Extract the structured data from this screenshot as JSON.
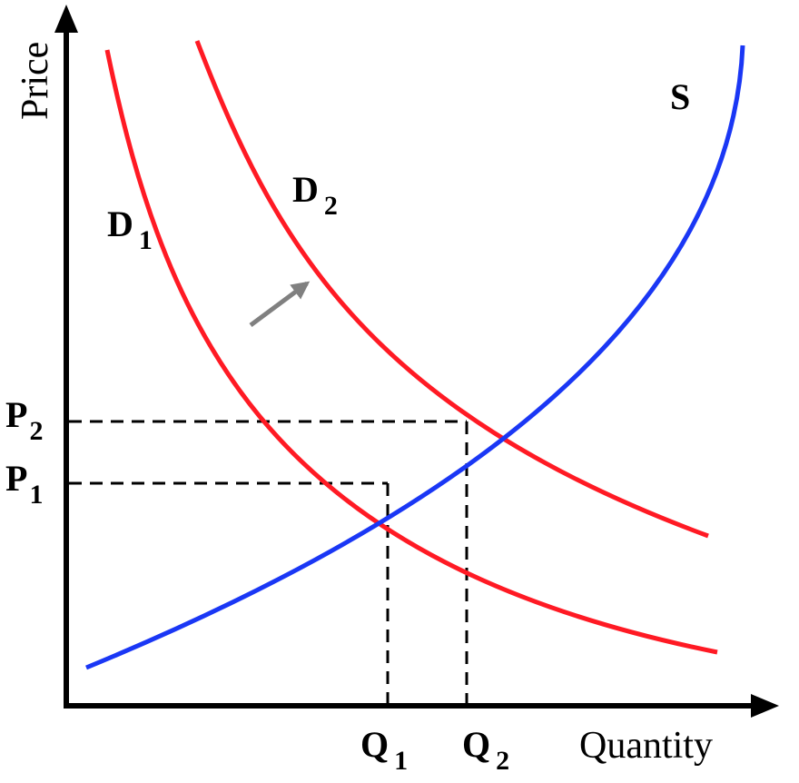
{
  "axes": {
    "y_label": "Price",
    "x_label": "Quantity"
  },
  "curves": {
    "supply": {
      "main": "S",
      "color": "#0000ff"
    },
    "demand1": {
      "main": "D",
      "sub": "1",
      "color": "#ff0000"
    },
    "demand2": {
      "main": "D",
      "sub": "2",
      "color": "#ff0000"
    }
  },
  "price_ticks": [
    {
      "main": "P",
      "sub": "2"
    },
    {
      "main": "P",
      "sub": "1"
    }
  ],
  "quantity_ticks": [
    {
      "main": "Q",
      "sub": "1"
    },
    {
      "main": "Q",
      "sub": "2"
    }
  ],
  "colors": {
    "axis": "#000000",
    "guide": "#000000",
    "shift_arrow": "#808080"
  },
  "shift_arrow_icon": "arrow-up-right-icon"
}
